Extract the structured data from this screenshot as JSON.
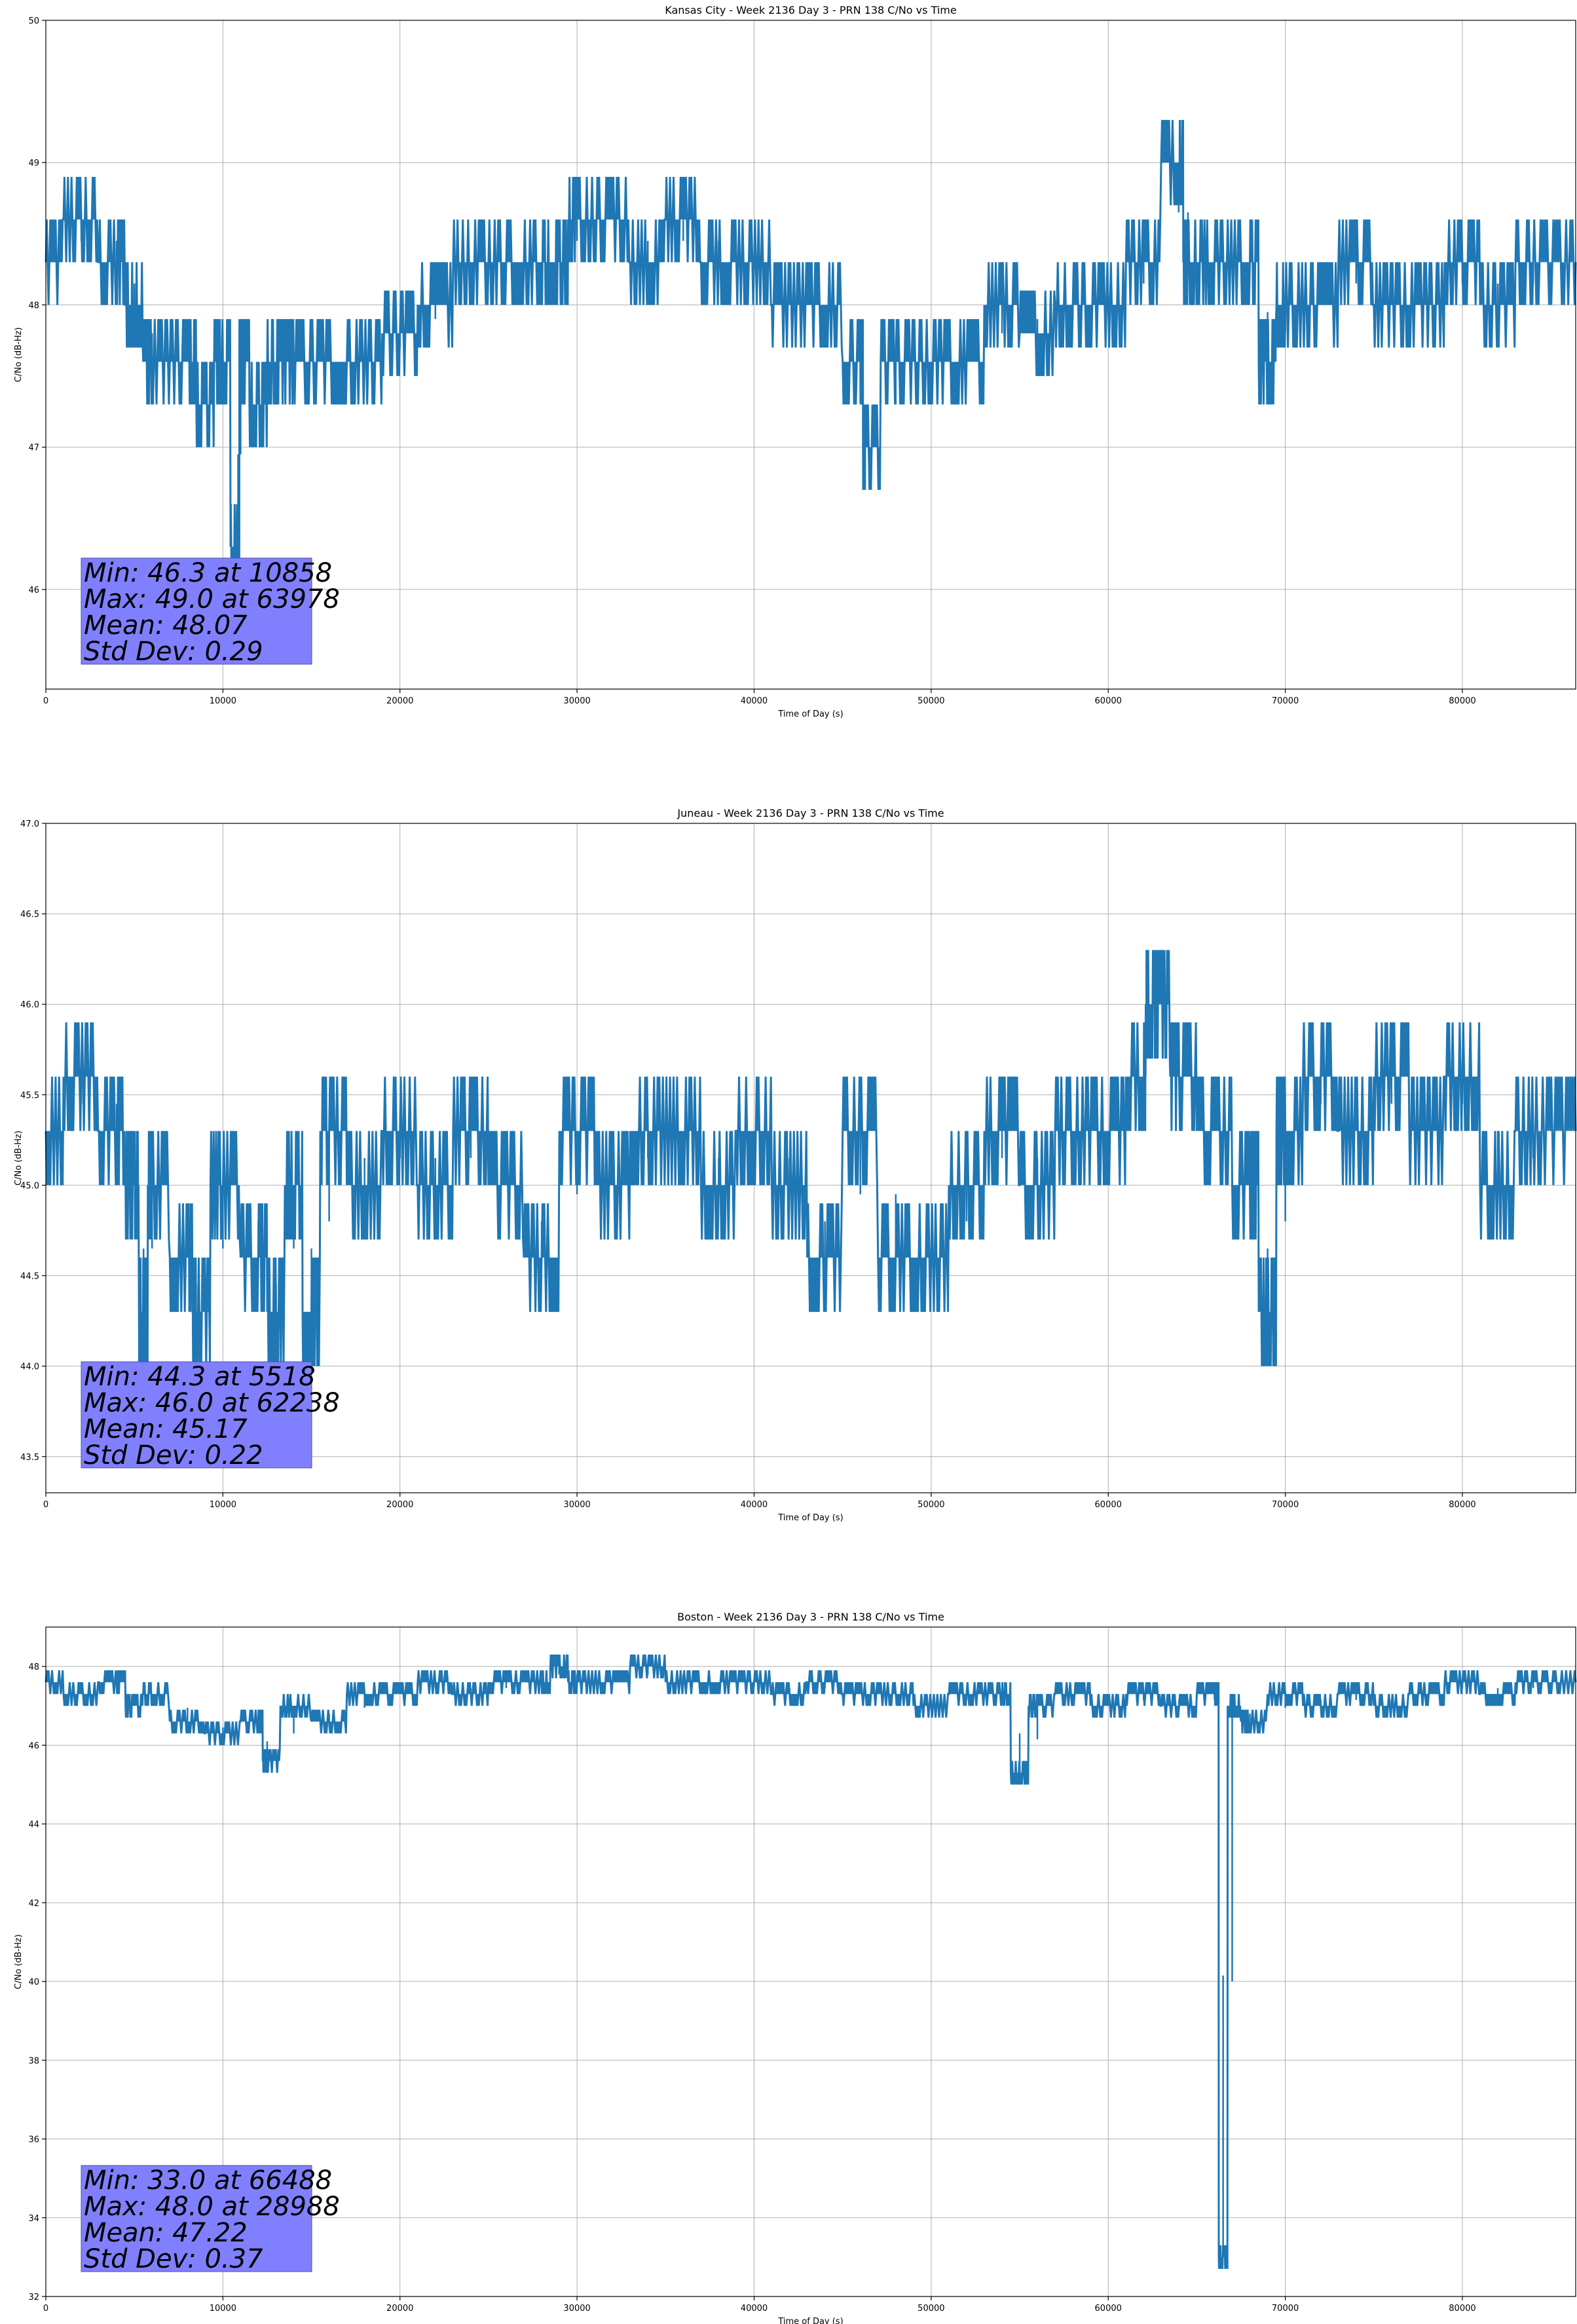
{
  "chart_data": [
    {
      "type": "line",
      "title": "Kansas City - Week 2136 Day 3 - PRN 138 C/No vs Time",
      "xlabel": "Time of Day (s)",
      "ylabel": "C/No (dB-Hz)",
      "xlim": [
        0,
        86400
      ],
      "ylim": [
        45.3,
        50
      ],
      "xticks": [
        0,
        10000,
        20000,
        30000,
        40000,
        50000,
        60000,
        70000,
        80000
      ],
      "yticks": [
        46,
        47,
        48,
        49,
        50
      ],
      "ytick_labels": [
        "46",
        "47",
        "48",
        "49",
        "50"
      ],
      "grid": true,
      "color": "#1f77b4",
      "series": [
        {
          "x": [
            0,
            2000,
            4000,
            5000,
            6000,
            8000,
            9000,
            10000,
            10858,
            11000,
            12000,
            13000,
            14000,
            16000,
            18000,
            20000,
            22000,
            24000,
            26000,
            28000,
            29000,
            30000,
            32000,
            34000,
            36000,
            38000,
            40000,
            42000,
            44000,
            46000,
            46300,
            48000,
            50000,
            52000,
            54000,
            56000,
            58000,
            60000,
            62000,
            63978,
            64500,
            66000,
            68000,
            69000,
            70000,
            72000,
            74000,
            76000,
            78000,
            80000,
            82000,
            84000,
            86400
          ],
          "y": [
            48.3,
            48.6,
            48.3,
            48.0,
            47.6,
            47.6,
            47.3,
            47.6,
            46.3,
            47.6,
            47.3,
            47.6,
            47.6,
            47.6,
            47.6,
            47.8,
            48.0,
            48.3,
            48.3,
            48.3,
            48.3,
            48.6,
            48.6,
            48.3,
            48.6,
            48.3,
            48.3,
            48.0,
            48.0,
            47.6,
            47.0,
            47.6,
            47.6,
            47.6,
            48.0,
            47.8,
            48.0,
            48.0,
            48.3,
            49.0,
            48.3,
            48.3,
            48.3,
            47.6,
            48.0,
            48.0,
            48.3,
            48.0,
            48.0,
            48.3,
            48.0,
            48.3,
            48.3
          ]
        }
      ],
      "stats": {
        "min": "Min: 46.3 at 10858",
        "max": "Max: 49.0 at 63978",
        "mean": "Mean: 48.07",
        "std": "Std Dev: 0.29"
      }
    },
    {
      "type": "line",
      "title": "Juneau - Week 2136 Day 3 - PRN 138 C/No vs Time",
      "xlabel": "Time of Day (s)",
      "ylabel": "C/No (dB-Hz)",
      "xlim": [
        0,
        86400
      ],
      "ylim": [
        43.3,
        47.0
      ],
      "xticks": [
        0,
        10000,
        20000,
        30000,
        40000,
        50000,
        60000,
        70000,
        80000
      ],
      "yticks": [
        43.5,
        44.0,
        44.5,
        45.0,
        45.5,
        46.0,
        46.5,
        47.0
      ],
      "ytick_labels": [
        "43.5",
        "44.0",
        "44.5",
        "45.0",
        "45.5",
        "46.0",
        "46.5",
        "47.0"
      ],
      "grid": true,
      "color": "#1f77b4",
      "series": [
        {
          "x": [
            0,
            2000,
            4000,
            5000,
            5518,
            6000,
            8000,
            8600,
            10000,
            12000,
            13000,
            14000,
            15000,
            16000,
            18000,
            20000,
            22000,
            24000,
            26000,
            28000,
            30000,
            32000,
            34000,
            36000,
            38000,
            40000,
            42000,
            44000,
            46000,
            48000,
            50000,
            52000,
            54000,
            56000,
            58000,
            60000,
            62000,
            62238,
            63000,
            64000,
            66000,
            68000,
            69000,
            70000,
            72000,
            74000,
            76000,
            78000,
            80000,
            82000,
            84000,
            86400
          ],
          "y": [
            45.3,
            45.6,
            45.3,
            45.0,
            44.3,
            45.0,
            44.6,
            44.3,
            45.0,
            44.6,
            44.3,
            45.0,
            44.3,
            45.3,
            45.0,
            45.3,
            45.0,
            45.3,
            45.0,
            44.6,
            45.3,
            45.0,
            45.3,
            45.3,
            45.0,
            45.3,
            45.0,
            44.6,
            45.3,
            44.6,
            44.6,
            45.0,
            45.3,
            45.0,
            45.3,
            45.3,
            45.6,
            46.0,
            46.0,
            45.6,
            45.3,
            45.0,
            44.3,
            45.3,
            45.6,
            45.3,
            45.6,
            45.3,
            45.6,
            45.0,
            45.3,
            45.3
          ]
        }
      ],
      "stats": {
        "min": "Min: 44.3 at 5518",
        "max": "Max: 46.0 at 62238",
        "mean": "Mean: 45.17",
        "std": "Std Dev: 0.22"
      }
    },
    {
      "type": "line",
      "title": "Boston - Week 2136 Day 3 - PRN 138 C/No vs Time",
      "xlabel": "Time of Day (s)",
      "ylabel": "C/No (dB-Hz)",
      "xlim": [
        0,
        86400
      ],
      "ylim": [
        32,
        49
      ],
      "xticks": [
        0,
        10000,
        20000,
        30000,
        40000,
        50000,
        60000,
        70000,
        80000
      ],
      "yticks": [
        32,
        34,
        36,
        38,
        40,
        42,
        44,
        46,
        48
      ],
      "ytick_labels": [
        "32",
        "34",
        "36",
        "38",
        "40",
        "42",
        "44",
        "46",
        "48"
      ],
      "grid": true,
      "color": "#1f77b4",
      "series": [
        {
          "x": [
            0,
            2000,
            4000,
            5000,
            6000,
            8000,
            10000,
            12000,
            12500,
            14000,
            16000,
            18000,
            20000,
            22000,
            24000,
            26000,
            28000,
            28988,
            30000,
            32000,
            34000,
            36000,
            38000,
            40000,
            42000,
            44000,
            46000,
            48000,
            50000,
            52000,
            54000,
            55000,
            56000,
            58000,
            60000,
            62000,
            64000,
            66000,
            66488,
            67000,
            68000,
            70000,
            72000,
            74000,
            76000,
            78000,
            80000,
            82000,
            84000,
            86400
          ],
          "y": [
            47.6,
            47.3,
            47.6,
            47.0,
            47.3,
            46.6,
            46.3,
            46.6,
            45.6,
            47.0,
            46.6,
            47.3,
            47.3,
            47.6,
            47.3,
            47.6,
            47.6,
            48.0,
            47.6,
            47.6,
            48.0,
            47.6,
            47.6,
            47.6,
            47.3,
            47.6,
            47.3,
            47.3,
            47.0,
            47.3,
            47.3,
            45.3,
            47.0,
            47.3,
            47.0,
            47.3,
            47.0,
            47.3,
            33.0,
            47.0,
            46.6,
            47.3,
            47.0,
            47.3,
            47.0,
            47.3,
            47.6,
            47.3,
            47.6,
            47.6
          ]
        }
      ],
      "stats": {
        "min": "Min: 33.0 at 66488",
        "max": "Max: 48.0 at 28988",
        "mean": "Mean: 47.22",
        "std": "Std Dev: 0.37"
      }
    }
  ]
}
